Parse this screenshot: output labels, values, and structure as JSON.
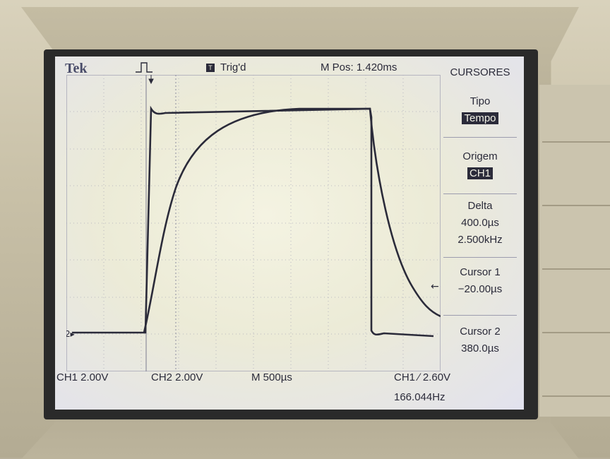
{
  "header": {
    "brand": "Tek",
    "trigger_status": "Trig'd",
    "mpos": "M Pos: 1.420ms"
  },
  "menu": {
    "title": "CURSORES",
    "tipo_label": "Tipo",
    "tipo_value": "Tempo",
    "origem_label": "Origem",
    "origem_value": "CH1",
    "delta_label": "Delta",
    "delta_time": "400.0µs",
    "delta_freq": "2.500kHz",
    "cursor1_label": "Cursor 1",
    "cursor1_value": "−20.00µs",
    "cursor2_label": "Cursor 2",
    "cursor2_value": "380.0µs"
  },
  "footer": {
    "ch1_scale": "CH1  2.00V",
    "ch2_scale": "CH2  2.00V",
    "timebase": "M 500µs",
    "trigger": "CH1 ∕ 2.60V",
    "frequency": "166.044Hz"
  },
  "colors": {
    "trace": "#2b2b3a",
    "grid": "#a9a9b8",
    "screen_bg": "#eeeddb"
  }
}
